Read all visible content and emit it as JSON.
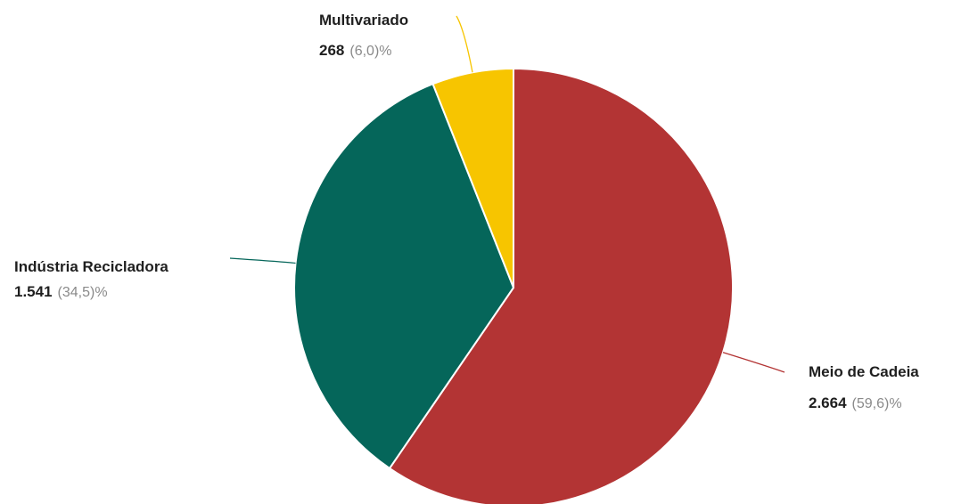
{
  "chart_data": {
    "type": "pie",
    "slices": [
      {
        "name": "Meio de Cadeia",
        "value": 2664,
        "value_label": "2.664",
        "percent_label": "(59,6)%",
        "color": "#b33434"
      },
      {
        "name": "Indústria Recicladora",
        "value": 1541,
        "value_label": "1.541",
        "percent_label": "(34,5)%",
        "color": "#05665a"
      },
      {
        "name": "Multivariado",
        "value": 268,
        "value_label": "268",
        "percent_label": "(6,0)%",
        "color": "#f7c500"
      }
    ],
    "start_angle_deg": 0,
    "direction": "clockwise",
    "legend": "none"
  }
}
